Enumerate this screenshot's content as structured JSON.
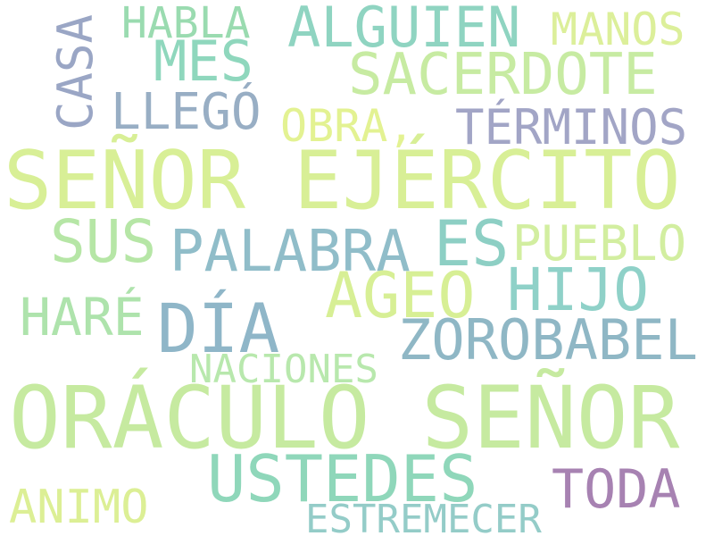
{
  "words": [
    {
      "text": "HABLA",
      "color": "#9adbb0"
    },
    {
      "text": "ALGUIEN",
      "color": "#8fd4c1"
    },
    {
      "text": "MANOS",
      "color": "#dcef9a"
    },
    {
      "text": "CASA",
      "color": "#9aa6c5"
    },
    {
      "text": "MES",
      "color": "#8fd7bd"
    },
    {
      "text": "SACERDOTE",
      "color": "#c7eba2"
    },
    {
      "text": "LLEGÓ",
      "color": "#98aec4"
    },
    {
      "text": "OBRA,",
      "color": "#e3f292"
    },
    {
      "text": "TÉRMINOS",
      "color": "#a2a5c6"
    },
    {
      "text": "SEÑOR EJÉRCITO",
      "color": "#d8ef96"
    },
    {
      "text": "SUS",
      "color": "#b6e6a6"
    },
    {
      "text": "PALABRA",
      "color": "#90bdc9"
    },
    {
      "text": "ES",
      "color": "#8dcfc4"
    },
    {
      "text": "PUEBLO",
      "color": "#d2eea0"
    },
    {
      "text": "AGEO",
      "color": "#d7ef95"
    },
    {
      "text": "HIJO",
      "color": "#8fd1c8"
    },
    {
      "text": "HARÉ",
      "color": "#aee3ac"
    },
    {
      "text": "DÍA",
      "color": "#8fb6c8"
    },
    {
      "text": "ZOROBABEL",
      "color": "#8fb7c5"
    },
    {
      "text": "NACIONES",
      "color": "#b8e8ad"
    },
    {
      "text": "ORÁCULO SEÑOR",
      "color": "#c6eaa0"
    },
    {
      "text": "USTEDES",
      "color": "#8fd7ba"
    },
    {
      "text": "TODA",
      "color": "#a782b2"
    },
    {
      "text": "ANIMO",
      "color": "#dcef95"
    },
    {
      "text": "ESTREMECER",
      "color": "#94ccc8"
    }
  ]
}
